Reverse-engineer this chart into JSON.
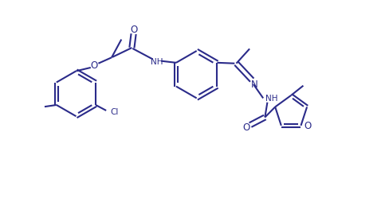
{
  "bg_color": "#ffffff",
  "line_color": "#2b2b8a",
  "lw": 1.5,
  "figsize": [
    4.89,
    2.55
  ],
  "dpi": 100,
  "xlim": [
    -0.5,
    10.5
  ],
  "ylim": [
    -0.3,
    5.5
  ]
}
